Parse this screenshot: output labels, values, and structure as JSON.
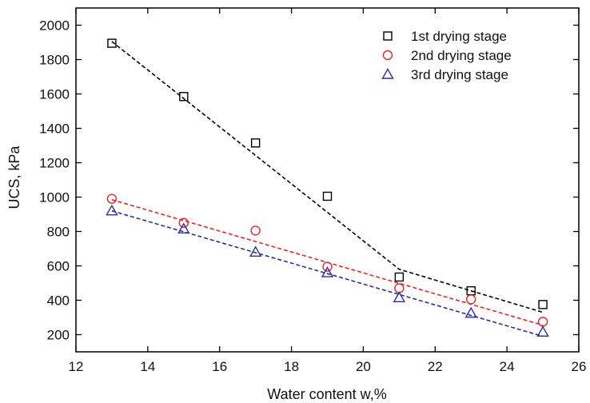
{
  "chart_data": {
    "type": "scatter",
    "xlabel": "Water content w,%",
    "ylabel": "UCS, kPa",
    "xlim": [
      12,
      26
    ],
    "ylim": [
      100,
      2100
    ],
    "x_ticks": [
      "12",
      "14",
      "16",
      "18",
      "20",
      "22",
      "24",
      "26"
    ],
    "y_ticks": [
      "200",
      "400",
      "600",
      "800",
      "1000",
      "1200",
      "1400",
      "1600",
      "1800",
      "2000"
    ],
    "x_tick_values": [
      12,
      14,
      16,
      18,
      20,
      22,
      24,
      26
    ],
    "y_tick_values": [
      200,
      400,
      600,
      800,
      1000,
      1200,
      1400,
      1600,
      1800,
      2000
    ],
    "grid": false,
    "legend_position": "top-right",
    "series": [
      {
        "name": "1st  drying stage",
        "marker": "square",
        "color": "#000000",
        "x": [
          13,
          15,
          17,
          19,
          21,
          23,
          25
        ],
        "y": [
          1895,
          1585,
          1315,
          1005,
          535,
          455,
          375
        ],
        "fit_line": [
          [
            13,
            1905
          ],
          [
            21,
            580
          ],
          [
            25,
            330
          ]
        ]
      },
      {
        "name": "2nd  drying stage",
        "marker": "circle",
        "color": "#e8252b",
        "x": [
          13,
          15,
          17,
          19,
          21,
          23,
          25
        ],
        "y": [
          990,
          850,
          805,
          595,
          470,
          405,
          275
        ],
        "fit_line": [
          [
            13,
            985
          ],
          [
            25,
            255
          ]
        ]
      },
      {
        "name": "3rd  drying stage",
        "marker": "triangle",
        "color": "#2a2f9e",
        "x": [
          13,
          15,
          17,
          19,
          21,
          23,
          25
        ],
        "y": [
          920,
          815,
          680,
          560,
          415,
          325,
          215
        ],
        "fit_line": [
          [
            13,
            920
          ],
          [
            25,
            190
          ]
        ]
      }
    ]
  }
}
